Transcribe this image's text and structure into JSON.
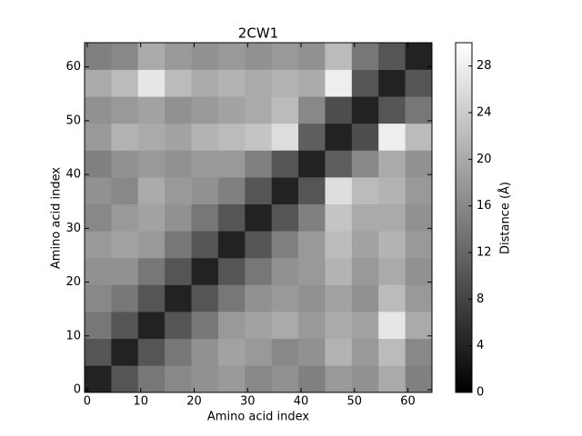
{
  "chart_data": {
    "type": "heatmap",
    "title": "2CW1",
    "x_label": "Amino acid index",
    "y_label": "Amino acid index",
    "colorbar_label": "Distance (Å)",
    "xbins": [
      -0.5,
      4.5,
      9.5,
      14.5,
      19.5,
      24.5,
      29.5,
      34.5,
      39.5,
      44.5,
      49.5,
      54.5,
      59.5,
      64.5
    ],
    "ybins": [
      -0.5,
      4.5,
      9.5,
      14.5,
      19.5,
      24.5,
      29.5,
      34.5,
      39.5,
      44.5,
      49.5,
      54.5,
      59.5,
      64.5
    ],
    "values": [
      [
        4,
        10,
        14,
        16,
        17,
        18,
        16,
        17,
        15,
        18,
        17,
        20,
        15
      ],
      [
        10,
        4,
        10,
        14,
        17,
        19,
        18,
        16,
        17,
        21,
        18,
        22,
        16
      ],
      [
        14,
        10,
        4,
        10,
        14,
        18,
        19,
        20,
        18,
        20,
        19,
        27,
        20
      ],
      [
        16,
        14,
        10,
        4,
        10,
        14,
        17,
        18,
        17,
        19,
        17,
        22,
        18
      ],
      [
        17,
        17,
        14,
        10,
        4,
        10,
        14,
        17,
        18,
        21,
        18,
        20,
        17
      ],
      [
        18,
        19,
        18,
        14,
        10,
        4,
        10,
        15,
        18,
        22,
        19,
        21,
        18
      ],
      [
        16,
        18,
        19,
        17,
        14,
        10,
        4,
        10,
        15,
        23,
        20,
        20,
        17
      ],
      [
        17,
        16,
        20,
        18,
        17,
        15,
        10,
        4,
        10,
        26,
        22,
        21,
        18
      ],
      [
        15,
        17,
        18,
        17,
        18,
        18,
        15,
        10,
        4,
        11,
        16,
        20,
        17
      ],
      [
        18,
        21,
        20,
        19,
        21,
        22,
        23,
        26,
        11,
        4,
        9,
        28,
        22
      ],
      [
        17,
        18,
        19,
        17,
        18,
        19,
        20,
        22,
        16,
        9,
        4,
        10,
        14
      ],
      [
        20,
        22,
        27,
        22,
        20,
        21,
        20,
        21,
        20,
        28,
        10,
        4,
        10
      ],
      [
        15,
        16,
        20,
        18,
        17,
        18,
        17,
        18,
        17,
        22,
        14,
        10,
        4
      ]
    ],
    "xlim": [
      -0.5,
      64.5
    ],
    "ylim": [
      -0.5,
      64.5
    ],
    "xticks": [
      0,
      10,
      20,
      30,
      40,
      50,
      60
    ],
    "yticks": [
      0,
      10,
      20,
      30,
      40,
      50,
      60
    ],
    "clim": [
      0,
      30
    ],
    "cticks": [
      0,
      4,
      8,
      12,
      16,
      20,
      24,
      28
    ],
    "colormap": "gray"
  }
}
